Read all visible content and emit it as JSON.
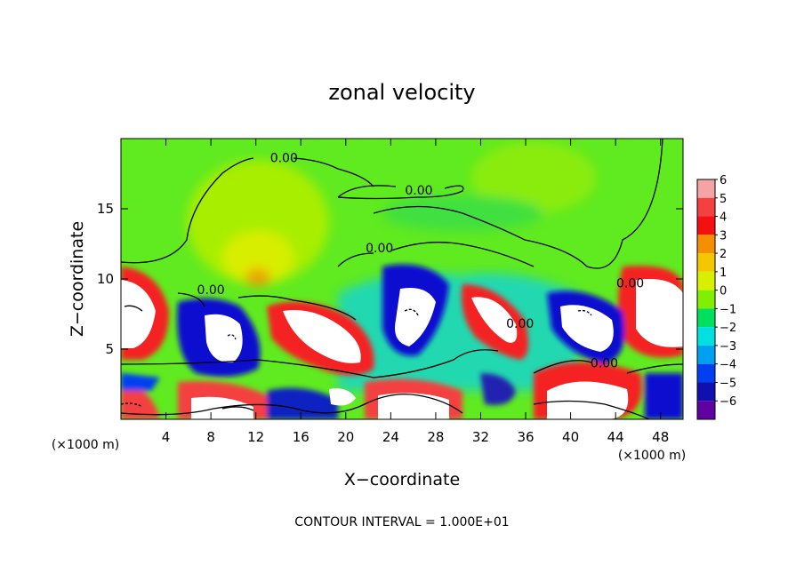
{
  "chart_data": {
    "type": "heatmap",
    "title": "zonal velocity",
    "xlabel": "X−coordinate",
    "ylabel": "Z−coordinate",
    "x_unit_left": "(×1000 m)",
    "x_unit_right": "(×1000 m)",
    "footer": "CONTOUR INTERVAL = 1.000E+01",
    "xlim": [
      0,
      50
    ],
    "ylim": [
      0,
      20
    ],
    "xticks": [
      4,
      8,
      12,
      16,
      20,
      24,
      28,
      32,
      36,
      40,
      44,
      48
    ],
    "yticks": [
      5,
      10,
      15
    ],
    "colorbar": {
      "ticks": [
        6,
        5,
        4,
        3,
        2,
        1,
        0,
        -1,
        -2,
        -3,
        -4,
        -5,
        -6
      ],
      "tick_labels": [
        "6",
        "5",
        "4",
        "3",
        "2",
        "1",
        "0",
        "−1",
        "−2",
        "−3",
        "−4",
        "−5",
        "−6"
      ],
      "colors": [
        "#f4a4a4",
        "#f44040",
        "#f41010",
        "#f49000",
        "#f4c800",
        "#d8f000",
        "#80f000",
        "#00e060",
        "#00e0e0",
        "#00a0f0",
        "#0040f0",
        "#1010b0",
        "#6000a0"
      ]
    },
    "contour_labels": [
      {
        "text": "0.00",
        "x": 14.5,
        "y": 18.5
      },
      {
        "text": "0.00",
        "x": 26.5,
        "y": 16.2
      },
      {
        "text": "0.00",
        "x": 23.0,
        "y": 12.1
      },
      {
        "text": "0.00",
        "x": 8.0,
        "y": 9.1
      },
      {
        "text": "0.00",
        "x": 45.3,
        "y": 9.6
      },
      {
        "text": "0.00",
        "x": 35.5,
        "y": 6.7
      },
      {
        "text": "0.00",
        "x": 43.0,
        "y": 3.9
      }
    ]
  }
}
